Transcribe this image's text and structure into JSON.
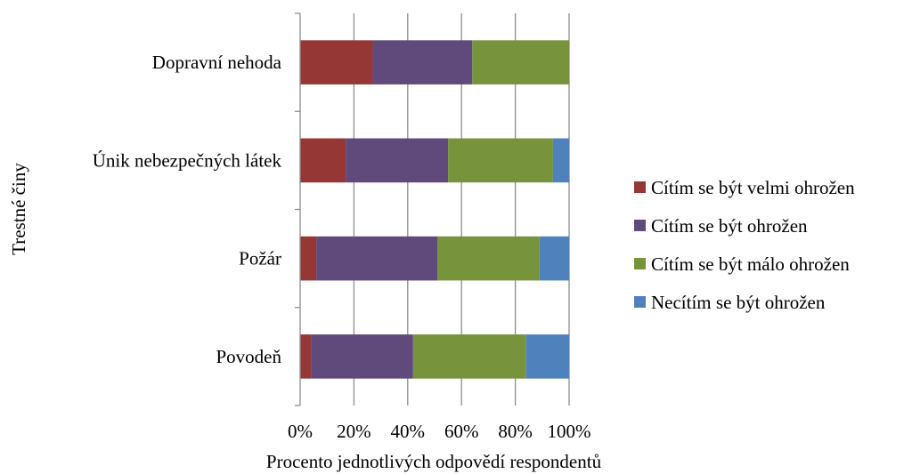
{
  "chart_data": {
    "type": "bar",
    "orientation": "horizontal",
    "stacking": "percent",
    "title": "",
    "xlabel": "Procento jednotlivých odpovědí respondentů",
    "ylabel": "Trestné činy",
    "xlim": [
      0,
      100
    ],
    "x_ticks": [
      "0%",
      "20%",
      "40%",
      "60%",
      "80%",
      "100%"
    ],
    "grid": "vertical",
    "legend_position": "right",
    "categories": [
      "Dopravní nehoda",
      "Únik nebezpečných látek",
      "Požár",
      "Povodeň"
    ],
    "series": [
      {
        "name": "Cítím se být velmi ohrožen",
        "color": "#953735",
        "values": [
          27,
          17,
          6,
          4
        ]
      },
      {
        "name": "Cítím se být ohrožen",
        "color": "#604a7b",
        "values": [
          37,
          38,
          45,
          38
        ]
      },
      {
        "name": "Cítím se být málo ohrožen",
        "color": "#77933c",
        "values": [
          36,
          39,
          38,
          42
        ]
      },
      {
        "name": "Necítím se být ohrožen",
        "color": "#4f81bd",
        "values": [
          0,
          6,
          11,
          16
        ]
      }
    ]
  }
}
